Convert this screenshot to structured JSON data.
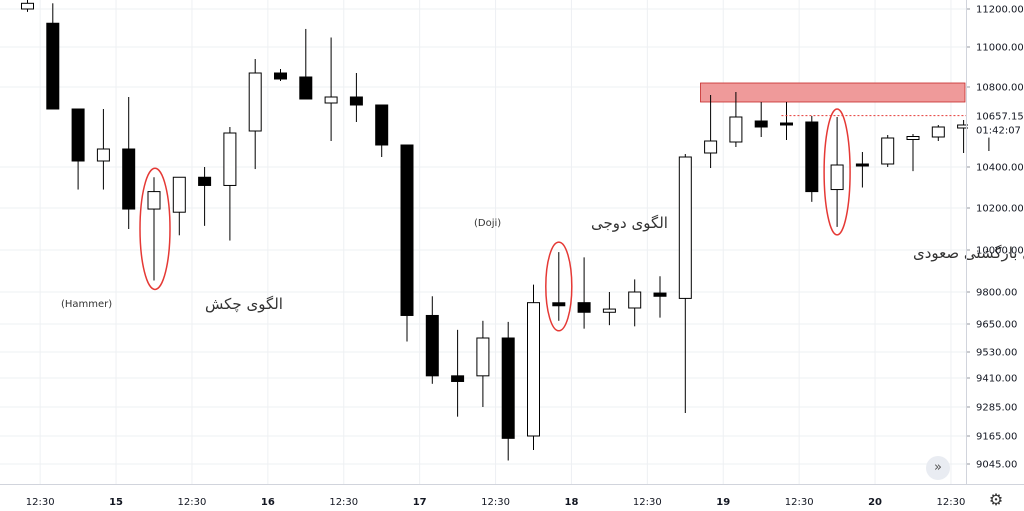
{
  "chart_data": {
    "type": "candlestick",
    "y_ticks": [
      11200,
      11000,
      10800,
      10400,
      10200,
      10000,
      9800,
      9650,
      9530,
      9410,
      9285,
      9165,
      9045
    ],
    "y_tick_labels": [
      "11200.00",
      "11000.00",
      "10800.00",
      "10400.00",
      "10200.00",
      "10000.00",
      "9800.00",
      "9650.00",
      "9530.00",
      "9410.00",
      "9285.00",
      "9165.00",
      "9045.00"
    ],
    "x_ticks": [
      {
        "label": "12:30",
        "bold": false,
        "index": 0.5
      },
      {
        "label": "15",
        "bold": true,
        "index": 3.5
      },
      {
        "label": "12:30",
        "bold": false,
        "index": 6.5
      },
      {
        "label": "16",
        "bold": true,
        "index": 9.5
      },
      {
        "label": "12:30",
        "bold": false,
        "index": 12.5
      },
      {
        "label": "17",
        "bold": true,
        "index": 15.5
      },
      {
        "label": "12:30",
        "bold": false,
        "index": 18.5
      },
      {
        "label": "18",
        "bold": true,
        "index": 21.5
      },
      {
        "label": "12:30",
        "bold": false,
        "index": 24.5
      },
      {
        "label": "19",
        "bold": true,
        "index": 27.5
      },
      {
        "label": "12:30",
        "bold": false,
        "index": 30.5
      },
      {
        "label": "20",
        "bold": true,
        "index": 33.5
      },
      {
        "label": "12:30",
        "bold": false,
        "index": 36.5
      }
    ],
    "candles": [
      {
        "o": 11200,
        "h": 11265,
        "l": 11185,
        "c": 11230
      },
      {
        "o": 11125,
        "h": 11230,
        "l": 10700,
        "c": 10690
      },
      {
        "o": 10690,
        "h": 10690,
        "l": 10290,
        "c": 10430
      },
      {
        "o": 10430,
        "h": 10690,
        "l": 10290,
        "c": 10490
      },
      {
        "o": 10490,
        "h": 10750,
        "l": 10100,
        "c": 10195
      },
      {
        "o": 10195,
        "h": 10350,
        "l": 9855,
        "c": 10280
      },
      {
        "o": 10180,
        "h": 10340,
        "l": 10070,
        "c": 10350
      },
      {
        "o": 10350,
        "h": 10400,
        "l": 10115,
        "c": 10310
      },
      {
        "o": 10310,
        "h": 10600,
        "l": 10045,
        "c": 10570
      },
      {
        "o": 10580,
        "h": 10940,
        "l": 10390,
        "c": 10870
      },
      {
        "o": 10870,
        "h": 10890,
        "l": 10830,
        "c": 10840
      },
      {
        "o": 10850,
        "h": 11095,
        "l": 10740,
        "c": 10740
      },
      {
        "o": 10720,
        "h": 11050,
        "l": 10530,
        "c": 10750
      },
      {
        "o": 10750,
        "h": 10870,
        "l": 10625,
        "c": 10710
      },
      {
        "o": 10710,
        "h": 10710,
        "l": 10450,
        "c": 10510
      },
      {
        "o": 10510,
        "h": 10510,
        "l": 9575,
        "c": 9690
      },
      {
        "o": 9690,
        "h": 9780,
        "l": 9385,
        "c": 9420
      },
      {
        "o": 9420,
        "h": 9625,
        "l": 9245,
        "c": 9395
      },
      {
        "o": 9420,
        "h": 9665,
        "l": 9285,
        "c": 9590
      },
      {
        "o": 9590,
        "h": 9660,
        "l": 9060,
        "c": 9155
      },
      {
        "o": 9165,
        "h": 9835,
        "l": 9105,
        "c": 9750
      },
      {
        "o": 9745,
        "h": 9990,
        "l": 9665,
        "c": 9740
      },
      {
        "o": 9750,
        "h": 9965,
        "l": 9630,
        "c": 9705
      },
      {
        "o": 9705,
        "h": 9800,
        "l": 9645,
        "c": 9720
      },
      {
        "o": 9725,
        "h": 9860,
        "l": 9640,
        "c": 9800
      },
      {
        "o": 9795,
        "h": 9875,
        "l": 9680,
        "c": 9780
      },
      {
        "o": 9770,
        "h": 10465,
        "l": 9260,
        "c": 10450
      },
      {
        "o": 10470,
        "h": 10760,
        "l": 10395,
        "c": 10530
      },
      {
        "o": 10525,
        "h": 10775,
        "l": 10500,
        "c": 10650
      },
      {
        "o": 10630,
        "h": 10725,
        "l": 10550,
        "c": 10600
      },
      {
        "o": 10620,
        "h": 10725,
        "l": 10535,
        "c": 10610
      },
      {
        "o": 10625,
        "h": 10655,
        "l": 10230,
        "c": 10280
      },
      {
        "o": 10290,
        "h": 10650,
        "l": 10110,
        "c": 10410
      },
      {
        "o": 10415,
        "h": 10475,
        "l": 10300,
        "c": 10405
      },
      {
        "o": 10415,
        "h": 10560,
        "l": 10400,
        "c": 10545
      },
      {
        "o": 10545,
        "h": 10565,
        "l": 10380,
        "c": 10545
      },
      {
        "o": 10550,
        "h": 10610,
        "l": 10530,
        "c": 10600
      },
      {
        "o": 10595,
        "h": 10635,
        "l": 10470,
        "c": 10610
      },
      {
        "o": 10610,
        "h": 10660,
        "l": 10480,
        "c": 10650
      }
    ],
    "resistance_zone": {
      "low": 10725,
      "high": 10820,
      "color": "#ef9a9a"
    },
    "current_price": {
      "value": 10657.15,
      "label": "10657.15",
      "timer": "01:42:07",
      "color": "#e53935"
    },
    "annotations": [
      {
        "text": "الگوی چکش",
        "sub": "(Hammer)",
        "candle": 5
      },
      {
        "text": "الگوی دوجی",
        "sub": "(Doji)",
        "candle": 21
      },
      {
        "text": "الگوی کندل بازگشتی صعودی",
        "sub": "",
        "candle": 32
      }
    ],
    "colors": {
      "up_fill": "#ffffff",
      "down_fill": "#000000",
      "stroke": "#000000",
      "grid": "#eef0f3",
      "axis_text": "#131722",
      "highlight": "#e53935"
    }
  },
  "controls": {
    "scroll_icon": "»",
    "settings_icon": "⚙"
  }
}
